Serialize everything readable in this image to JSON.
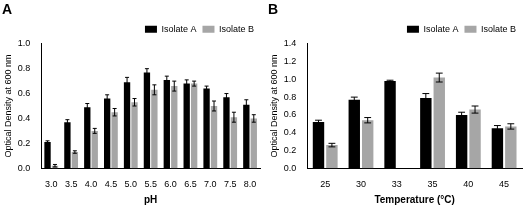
{
  "chart_data": [
    {
      "type": "bar",
      "title": "A",
      "x_label": "pH",
      "y_label": "Optical Density at 600 nm",
      "categories": [
        "3.0",
        "3.5",
        "4.0",
        "4.5",
        "5.0",
        "5.5",
        "6.0",
        "6.5",
        "7.0",
        "7.5",
        "8.0"
      ],
      "series": [
        {
          "name": "Isolate A",
          "color": "#000000",
          "values": [
            0.21,
            0.37,
            0.49,
            0.56,
            0.69,
            0.77,
            0.71,
            0.68,
            0.64,
            0.57,
            0.51
          ],
          "errors": [
            0.01,
            0.02,
            0.03,
            0.03,
            0.04,
            0.03,
            0.03,
            0.03,
            0.02,
            0.03,
            0.04
          ]
        },
        {
          "name": "Isolate B",
          "color": "#a6a6a6",
          "values": [
            0.02,
            0.13,
            0.3,
            0.45,
            0.53,
            0.63,
            0.66,
            0.68,
            0.5,
            0.41,
            0.4
          ],
          "errors": [
            0.01,
            0.01,
            0.02,
            0.03,
            0.03,
            0.04,
            0.04,
            0.02,
            0.04,
            0.04,
            0.03
          ]
        }
      ],
      "ylim": [
        0,
        1.0
      ],
      "yticks": [
        {
          "value": 0,
          "label": "0.0"
        },
        0.2,
        0.4,
        0.6,
        0.8,
        {
          "value": 1.0,
          "label": "1.0"
        }
      ],
      "grid": false,
      "legend": "top"
    },
    {
      "type": "bar",
      "title": "B",
      "x_label": "Temperature (°C)",
      "y_label": "Optical Density at 600 nm",
      "categories": [
        "25",
        "30",
        "33",
        "35",
        "40",
        "45"
      ],
      "series": [
        {
          "name": "Isolate A",
          "color": "#000000",
          "values": [
            0.52,
            0.77,
            0.98,
            0.79,
            0.6,
            0.45
          ],
          "errors": [
            0.02,
            0.03,
            0.01,
            0.05,
            0.03,
            0.03
          ]
        },
        {
          "name": "Isolate B",
          "color": "#a6a6a6",
          "values": [
            0.26,
            0.54,
            null,
            1.02,
            0.66,
            0.47
          ],
          "errors": [
            0.02,
            0.03,
            null,
            0.05,
            0.04,
            0.03
          ]
        }
      ],
      "ylim": [
        0,
        1.4
      ],
      "yticks": [
        {
          "value": 0,
          "label": "0.0"
        },
        0.2,
        0.4,
        0.6,
        0.8,
        {
          "value": 1.0,
          "label": "1.0"
        },
        1.2,
        1.4
      ],
      "grid": false,
      "legend": "top"
    }
  ]
}
